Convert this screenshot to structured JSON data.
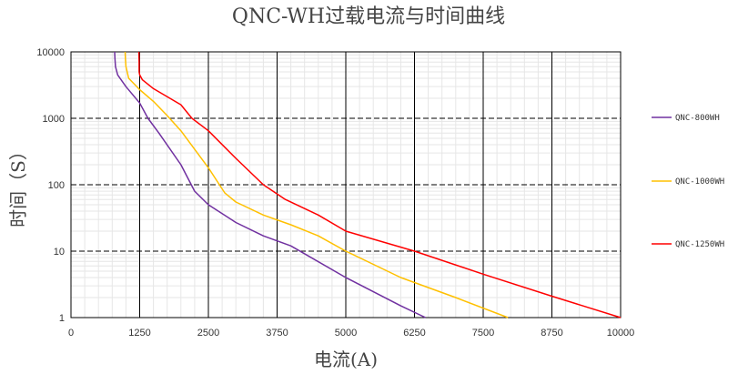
{
  "chart_data": {
    "type": "line",
    "title": "QNC-WH过载电流与时间曲线",
    "xlabel": "电流(A)",
    "ylabel": "时间（S）",
    "xlim": [
      0,
      10000
    ],
    "ylim": [
      1,
      10000
    ],
    "yscale": "log",
    "xticks": [
      "0",
      "1250",
      "2500",
      "3750",
      "5000",
      "6250",
      "7500",
      "8750",
      "10000"
    ],
    "yticks": [
      "1",
      "10",
      "100",
      "1000",
      "10000"
    ],
    "grid": true,
    "legend_position": "right",
    "series": [
      {
        "name": "QNC-800WH",
        "color": "#7030a0",
        "x": [
          795,
          800,
          810,
          850,
          1000,
          1250,
          1400,
          1600,
          2000,
          2250,
          2500,
          3000,
          3500,
          4000,
          5000,
          6000,
          6450
        ],
        "y": [
          10000,
          8000,
          6000,
          4500,
          3000,
          1700,
          1000,
          600,
          200,
          80,
          50,
          27,
          17,
          12,
          4,
          1.5,
          1
        ]
      },
      {
        "name": "QNC-1000WH",
        "color": "#ffc000",
        "x": [
          985,
          990,
          1000,
          1050,
          1250,
          1500,
          1750,
          2000,
          2500,
          2800,
          3000,
          3500,
          4000,
          4500,
          5000,
          6000,
          7000,
          7950
        ],
        "y": [
          10000,
          8000,
          6000,
          4000,
          2700,
          1800,
          1100,
          650,
          180,
          75,
          55,
          35,
          25,
          17,
          10,
          4,
          2,
          1
        ]
      },
      {
        "name": "QNC-1250WH",
        "color": "#ff0000",
        "x": [
          1235,
          1240,
          1240,
          1250,
          1300,
          1500,
          2000,
          2200,
          2500,
          3000,
          3500,
          3900,
          4500,
          5000,
          6250,
          7500,
          8750,
          10000
        ],
        "y": [
          10000,
          7000,
          5000,
          4500,
          3800,
          2800,
          1600,
          1000,
          650,
          250,
          100,
          60,
          35,
          20,
          10,
          4.5,
          2.1,
          1
        ]
      }
    ]
  }
}
